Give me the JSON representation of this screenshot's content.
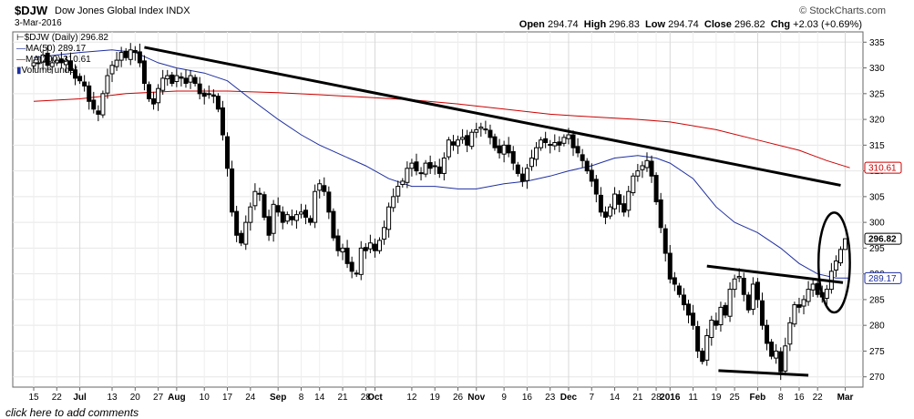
{
  "header": {
    "symbol": "$DJW",
    "index_name": "Dow Jones Global Index",
    "exchange": "INDX",
    "date": "3-Mar-2016",
    "watermark": "© StockCharts.com",
    "open_label": "Open",
    "open": "294.74",
    "high_label": "High",
    "high": "296.83",
    "low_label": "Low",
    "low": "294.74",
    "close_label": "Close",
    "close": "296.82",
    "chg_label": "Chg",
    "chg": "+2.03 (+0.69%)"
  },
  "legend": [
    {
      "text": "$DJW (Daily) 296.82",
      "color": "#000000"
    },
    {
      "text": "MA(50) 289.17",
      "color": "#1e2fa0"
    },
    {
      "text": "MA(200) 310.61",
      "color": "#cc0000"
    },
    {
      "text": "Volume undef",
      "color": "#1e2fa0"
    }
  ],
  "footer": {
    "comments_link": "click here to add comments"
  },
  "chart_data": {
    "type": "candlestick",
    "ylim": [
      268,
      337
    ],
    "y_ticks": [
      270,
      275,
      280,
      285,
      290,
      295,
      300,
      305,
      310,
      315,
      320,
      325,
      330,
      335
    ],
    "x_ticks": [
      {
        "label": "15",
        "x": 0
      },
      {
        "label": "22",
        "x": 5
      },
      {
        "label": "Jul",
        "x": 10,
        "bold": true
      },
      {
        "label": "13",
        "x": 17
      },
      {
        "label": "20",
        "x": 22
      },
      {
        "label": "27",
        "x": 27
      },
      {
        "label": "Aug",
        "x": 31,
        "bold": true
      },
      {
        "label": "10",
        "x": 37
      },
      {
        "label": "17",
        "x": 42
      },
      {
        "label": "24",
        "x": 47
      },
      {
        "label": "Sep",
        "x": 53,
        "bold": true
      },
      {
        "label": "8",
        "x": 58
      },
      {
        "label": "14",
        "x": 62
      },
      {
        "label": "21",
        "x": 67
      },
      {
        "label": "28",
        "x": 72
      },
      {
        "label": "Oct",
        "x": 74,
        "bold": true
      },
      {
        "label": "12",
        "x": 82
      },
      {
        "label": "19",
        "x": 87
      },
      {
        "label": "26",
        "x": 92
      },
      {
        "label": "Nov",
        "x": 96,
        "bold": true
      },
      {
        "label": "9",
        "x": 102
      },
      {
        "label": "16",
        "x": 107
      },
      {
        "label": "23",
        "x": 112
      },
      {
        "label": "Dec",
        "x": 116,
        "bold": true
      },
      {
        "label": "7",
        "x": 121
      },
      {
        "label": "14",
        "x": 126
      },
      {
        "label": "21",
        "x": 131
      },
      {
        "label": "28",
        "x": 135
      },
      {
        "label": "2016",
        "x": 138,
        "bold": true
      },
      {
        "label": "11",
        "x": 143
      },
      {
        "label": "19",
        "x": 148
      },
      {
        "label": "25",
        "x": 152
      },
      {
        "label": "Feb",
        "x": 157,
        "bold": true
      },
      {
        "label": "8",
        "x": 162
      },
      {
        "label": "16",
        "x": 166
      },
      {
        "label": "22",
        "x": 170
      },
      {
        "label": "Mar",
        "x": 176,
        "bold": true
      }
    ],
    "ohlc": [],
    "ma50": [
      [
        0,
        332
      ],
      [
        5,
        332.5
      ],
      [
        10,
        333
      ],
      [
        17,
        333.5
      ],
      [
        22,
        333
      ],
      [
        27,
        331
      ],
      [
        31,
        330
      ],
      [
        37,
        329
      ],
      [
        42,
        327.5
      ],
      [
        47,
        324
      ],
      [
        53,
        320
      ],
      [
        58,
        317
      ],
      [
        62,
        315
      ],
      [
        67,
        313
      ],
      [
        72,
        311
      ],
      [
        77,
        308.5
      ],
      [
        82,
        307
      ],
      [
        87,
        307
      ],
      [
        92,
        306.5
      ],
      [
        96,
        306.5
      ],
      [
        102,
        307.5
      ],
      [
        107,
        308
      ],
      [
        112,
        309
      ],
      [
        116,
        310
      ],
      [
        121,
        311
      ],
      [
        126,
        312.5
      ],
      [
        131,
        313
      ],
      [
        135,
        312.5
      ],
      [
        138,
        311.5
      ],
      [
        143,
        308.5
      ],
      [
        148,
        303
      ],
      [
        152,
        300
      ],
      [
        157,
        298
      ],
      [
        162,
        295
      ],
      [
        166,
        292
      ],
      [
        170,
        290
      ],
      [
        174,
        289.2
      ],
      [
        177,
        289.17
      ]
    ],
    "ma200": [
      [
        0,
        323.5
      ],
      [
        10,
        324
      ],
      [
        20,
        325
      ],
      [
        31,
        325.5
      ],
      [
        42,
        325.5
      ],
      [
        53,
        325.2
      ],
      [
        62,
        324.8
      ],
      [
        72,
        324.3
      ],
      [
        82,
        323.8
      ],
      [
        92,
        323
      ],
      [
        102,
        322
      ],
      [
        112,
        321
      ],
      [
        121,
        320.5
      ],
      [
        131,
        320
      ],
      [
        138,
        319.5
      ],
      [
        148,
        318
      ],
      [
        157,
        316
      ],
      [
        166,
        314
      ],
      [
        172,
        312
      ],
      [
        177,
        310.61
      ]
    ],
    "annotations": {
      "trendlines": [
        {
          "x1": 24,
          "y1": 334,
          "x2": 175,
          "y2": 307.2
        },
        {
          "x1": 146,
          "y1": 291.5,
          "x2": 175.5,
          "y2": 288.3
        },
        {
          "x1": 148.5,
          "y1": 271.2,
          "x2": 168,
          "y2": 270.3
        }
      ],
      "ellipse": {
        "cx": 173.6,
        "cy": 292.2,
        "rx": 3.4,
        "ry": 9.7
      },
      "price_labels": [
        {
          "value": 310.61,
          "text": "310.61",
          "color": "#cc0000"
        },
        {
          "value": 296.82,
          "text": "296.82",
          "color": "#000000",
          "bold": true
        },
        {
          "value": 289.17,
          "text": "289.17",
          "color": "#1e2fa0"
        }
      ]
    }
  }
}
